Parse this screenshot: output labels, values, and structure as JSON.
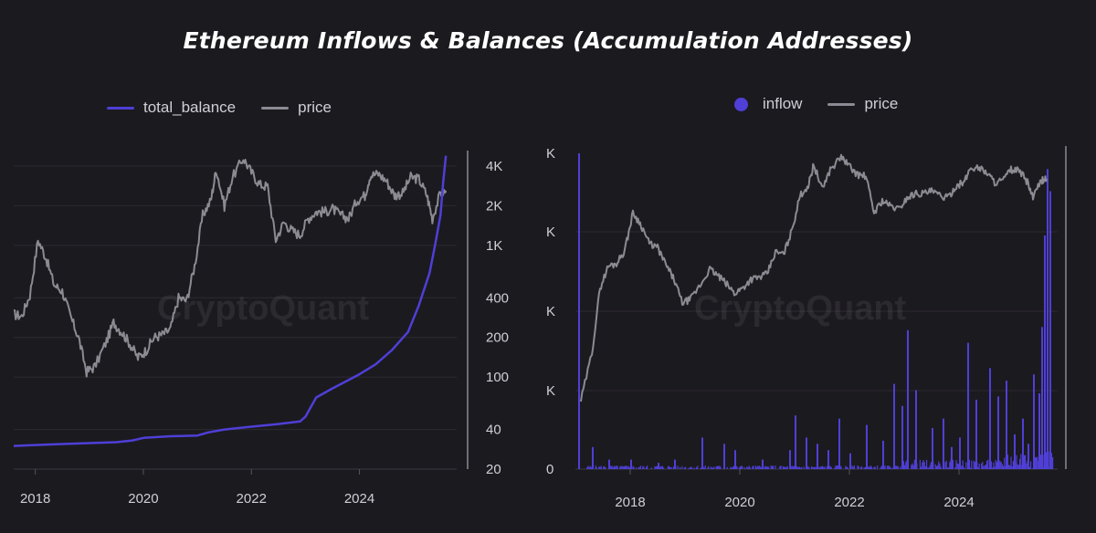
{
  "title": "Ethereum Inflows & Balances (Accumulation Addresses)",
  "watermark": "CryptoQuant",
  "colors": {
    "accent": "#4f3fd6",
    "price": "#8c8b93",
    "background": "#1b1a1f"
  },
  "chart_data": [
    {
      "type": "line",
      "title": "",
      "legend": [
        {
          "name": "total_balance",
          "color": "#4f3fd6"
        },
        {
          "name": "price",
          "color": "#8c8b93"
        }
      ],
      "legend_placement": "top-left",
      "x_ticks": [
        "2018",
        "2020",
        "2022",
        "2024"
      ],
      "y_ticks_right": [
        "4K",
        "2K",
        "1K",
        "400",
        "200",
        "100",
        "40",
        "20"
      ],
      "y_scale": "log",
      "ylim": [
        20,
        5000
      ],
      "xlim": [
        2017.6,
        2025.8
      ],
      "series": [
        {
          "name": "price",
          "x": [
            2017.6,
            2017.75,
            2017.9,
            2018.05,
            2018.2,
            2018.35,
            2018.5,
            2018.65,
            2018.8,
            2018.95,
            2019.1,
            2019.3,
            2019.45,
            2019.6,
            2019.75,
            2019.9,
            2020.05,
            2020.2,
            2020.35,
            2020.5,
            2020.65,
            2020.8,
            2020.95,
            2021.1,
            2021.25,
            2021.35,
            2021.5,
            2021.65,
            2021.85,
            2022.0,
            2022.15,
            2022.3,
            2022.45,
            2022.6,
            2022.75,
            2022.9,
            2023.05,
            2023.2,
            2023.35,
            2023.5,
            2023.65,
            2023.8,
            2023.95,
            2024.1,
            2024.2,
            2024.35,
            2024.5,
            2024.65,
            2024.8,
            2024.95,
            2025.1,
            2025.25,
            2025.35,
            2025.5,
            2025.6
          ],
          "values": [
            300,
            290,
            420,
            1100,
            800,
            500,
            450,
            290,
            200,
            110,
            120,
            180,
            260,
            220,
            180,
            140,
            160,
            200,
            210,
            230,
            400,
            380,
            700,
            1700,
            2200,
            3800,
            2000,
            3300,
            4600,
            3600,
            2900,
            2800,
            1100,
            1500,
            1300,
            1200,
            1600,
            1800,
            1800,
            1900,
            1700,
            1600,
            2200,
            2400,
            3400,
            3500,
            3100,
            2400,
            2500,
            3300,
            3200,
            2400,
            1600,
            2500,
            2600
          ]
        },
        {
          "name": "total_balance",
          "x": [
            2017.6,
            2018.0,
            2018.5,
            2019.0,
            2019.5,
            2019.8,
            2020.0,
            2020.5,
            2021.0,
            2021.2,
            2021.5,
            2022.0,
            2022.5,
            2022.9,
            2023.0,
            2023.2,
            2023.5,
            2023.8,
            2024.0,
            2024.3,
            2024.6,
            2024.9,
            2025.1,
            2025.3,
            2025.4,
            2025.5,
            2025.55,
            2025.6
          ],
          "values": [
            30,
            30.5,
            31,
            31.5,
            32,
            33,
            34.5,
            35.5,
            36,
            38,
            40,
            42,
            44,
            46,
            50,
            70,
            82,
            95,
            105,
            125,
            160,
            220,
            350,
            620,
            1000,
            1700,
            3000,
            4800
          ]
        }
      ]
    },
    {
      "type": "bar",
      "title": "",
      "legend": [
        {
          "name": "inflow",
          "color": "#4f3fd6"
        },
        {
          "name": "price",
          "color": "#8c8b93"
        }
      ],
      "legend_placement": "top-left",
      "x_ticks": [
        "2018",
        "2020",
        "2022",
        "2024"
      ],
      "y_ticks_left": [
        "K",
        "K",
        "K",
        "K",
        "0"
      ],
      "xlim": [
        2017.0,
        2025.8
      ],
      "series": [
        {
          "name": "price",
          "x": [
            2017.1,
            2017.3,
            2017.45,
            2017.6,
            2017.75,
            2017.9,
            2018.05,
            2018.2,
            2018.35,
            2018.5,
            2018.65,
            2018.8,
            2018.95,
            2019.1,
            2019.3,
            2019.45,
            2019.6,
            2019.75,
            2019.9,
            2020.05,
            2020.2,
            2020.35,
            2020.5,
            2020.65,
            2020.8,
            2020.95,
            2021.1,
            2021.25,
            2021.35,
            2021.5,
            2021.65,
            2021.85,
            2022.0,
            2022.15,
            2022.3,
            2022.45,
            2022.6,
            2022.75,
            2022.9,
            2023.05,
            2023.2,
            2023.35,
            2023.5,
            2023.65,
            2023.8,
            2023.95,
            2024.1,
            2024.2,
            2024.35,
            2024.5,
            2024.65,
            2024.8,
            2024.95,
            2025.1,
            2025.25,
            2025.35,
            2025.5,
            2025.6
          ],
          "values": [
            9,
            30,
            160,
            280,
            300,
            420,
            1100,
            800,
            500,
            450,
            290,
            200,
            110,
            120,
            180,
            260,
            220,
            180,
            140,
            160,
            200,
            210,
            230,
            400,
            380,
            700,
            1700,
            2200,
            3800,
            2000,
            3300,
            4600,
            3600,
            2900,
            2800,
            1100,
            1500,
            1300,
            1200,
            1600,
            1800,
            1800,
            1900,
            1700,
            1600,
            2200,
            2400,
            3400,
            3500,
            3100,
            2400,
            2500,
            3300,
            3200,
            2400,
            1600,
            2500,
            2600
          ]
        },
        {
          "name": "inflow",
          "x": [
            2017.05,
            2017.3,
            2017.6,
            2018.0,
            2018.5,
            2018.8,
            2019.3,
            2019.7,
            2019.9,
            2020.4,
            2020.9,
            2021.0,
            2021.2,
            2021.4,
            2021.6,
            2021.8,
            2022.0,
            2022.3,
            2022.6,
            2022.8,
            2022.95,
            2023.05,
            2023.2,
            2023.5,
            2023.7,
            2023.85,
            2024.0,
            2024.15,
            2024.3,
            2024.55,
            2024.7,
            2024.85,
            2025.0,
            2025.15,
            2025.25,
            2025.35,
            2025.45,
            2025.5,
            2025.55,
            2025.6,
            2025.65
          ],
          "values": [
            100,
            7,
            3,
            3,
            2,
            3,
            10,
            8,
            6,
            3,
            6,
            17,
            10,
            8,
            6,
            16,
            5,
            14,
            9,
            27,
            20,
            44,
            25,
            13,
            16,
            7,
            10,
            40,
            22,
            32,
            23,
            28,
            11,
            16,
            8,
            30,
            24,
            45,
            74,
            95,
            88
          ]
        }
      ]
    }
  ]
}
